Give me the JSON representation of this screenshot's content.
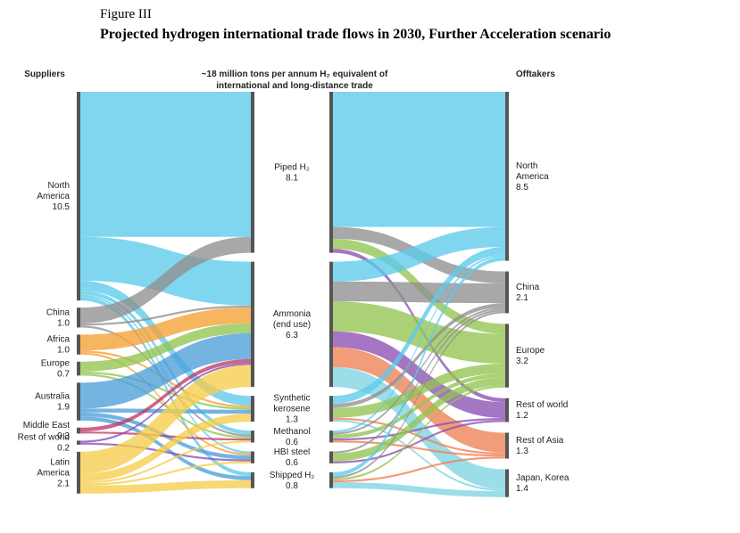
{
  "figure": {
    "label": "Figure III",
    "title": "Projected hydrogen international trade flows in 2030, Further Acceleration scenario"
  },
  "headers": {
    "suppliers": "Suppliers",
    "center_line1": "~18 million tons per annum H₂ equivalent of",
    "center_line2": "international and long-distance trade",
    "offtakers": "Offtakers"
  },
  "colors": {
    "North America": "#5ccbea",
    "China": "#8f8f8f",
    "Africa": "#f5a033",
    "Europe": "#92c450",
    "Australia": "#4c9fd8",
    "Middle East": "#c03a6a",
    "Rest of world": "#8a4fb3",
    "Latin America": "#f6cd4b",
    "Rest of Asia": "#ee8055",
    "Japan, Korea": "#7fd3e3"
  },
  "chart_data": {
    "type": "sankey",
    "unit": "million tons per annum H₂ equivalent",
    "suppliers": [
      {
        "name": "North America",
        "lines": [
          "North",
          "America",
          "10.5"
        ],
        "value": 10.5
      },
      {
        "name": "China",
        "lines": [
          "China",
          "1.0"
        ],
        "value": 1.0
      },
      {
        "name": "Africa",
        "lines": [
          "Africa",
          "1.0"
        ],
        "value": 1.0
      },
      {
        "name": "Europe",
        "lines": [
          "Europe",
          "0.7"
        ],
        "value": 0.7
      },
      {
        "name": "Australia",
        "lines": [
          "Australia",
          "1.9"
        ],
        "value": 1.9
      },
      {
        "name": "Middle East",
        "lines": [
          "Middle East",
          "0.3"
        ],
        "value": 0.3
      },
      {
        "name": "Rest of world",
        "lines": [
          "Rest of world",
          "0.2"
        ],
        "value": 0.2
      },
      {
        "name": "Latin America",
        "lines": [
          "Latin",
          "America",
          "2.1"
        ],
        "value": 2.1
      }
    ],
    "carriers": [
      {
        "name": "Piped H2",
        "lines": [
          "Piped H₂",
          "8.1"
        ],
        "value": 8.1
      },
      {
        "name": "Ammonia (end use)",
        "lines": [
          "Ammonia",
          "(end use)",
          "6.3"
        ],
        "value": 6.3
      },
      {
        "name": "Synthetic kerosene",
        "lines": [
          "Synthetic",
          "kerosene",
          "1.3"
        ],
        "value": 1.3
      },
      {
        "name": "Methanol",
        "lines": [
          "Methanol",
          "0.6"
        ],
        "value": 0.6
      },
      {
        "name": "HBI steel",
        "lines": [
          "HBI steel",
          "0.6"
        ],
        "value": 0.6
      },
      {
        "name": "Shipped H2",
        "lines": [
          "Shipped H₂",
          "0.8"
        ],
        "value": 0.8
      }
    ],
    "offtakers": [
      {
        "name": "North America",
        "lines": [
          "North",
          "America",
          "8.5"
        ],
        "value": 8.5
      },
      {
        "name": "China",
        "lines": [
          "China",
          "2.1"
        ],
        "value": 2.1
      },
      {
        "name": "Europe",
        "lines": [
          "Europe",
          "3.2"
        ],
        "value": 3.2
      },
      {
        "name": "Rest of world",
        "lines": [
          "Rest of world",
          "1.2"
        ],
        "value": 1.2
      },
      {
        "name": "Rest of Asia",
        "lines": [
          "Rest of Asia",
          "1.3"
        ],
        "value": 1.3
      },
      {
        "name": "Japan, Korea",
        "lines": [
          "Japan, Korea",
          "1.4"
        ],
        "value": 1.4
      }
    ],
    "flows_supplier_to_carrier": [
      {
        "from": "North America",
        "to": "Piped H2",
        "value": 7.3
      },
      {
        "from": "North America",
        "to": "Ammonia (end use)",
        "value": 2.2
      },
      {
        "from": "North America",
        "to": "Synthetic kerosene",
        "value": 0.5
      },
      {
        "from": "North America",
        "to": "Methanol",
        "value": 0.2
      },
      {
        "from": "North America",
        "to": "HBI steel",
        "value": 0.1
      },
      {
        "from": "North America",
        "to": "Shipped H2",
        "value": 0.2
      },
      {
        "from": "China",
        "to": "Piped H2",
        "value": 0.8
      },
      {
        "from": "China",
        "to": "Ammonia (end use)",
        "value": 0.1
      },
      {
        "from": "China",
        "to": "Methanol",
        "value": 0.1
      },
      {
        "from": "Africa",
        "to": "Ammonia (end use)",
        "value": 0.8
      },
      {
        "from": "Africa",
        "to": "Synthetic kerosene",
        "value": 0.1
      },
      {
        "from": "Africa",
        "to": "HBI steel",
        "value": 0.1
      },
      {
        "from": "Europe",
        "to": "Ammonia (end use)",
        "value": 0.5
      },
      {
        "from": "Europe",
        "to": "Synthetic kerosene",
        "value": 0.1
      },
      {
        "from": "Europe",
        "to": "Methanol",
        "value": 0.1
      },
      {
        "from": "Australia",
        "to": "Ammonia (end use)",
        "value": 1.3
      },
      {
        "from": "Australia",
        "to": "Synthetic kerosene",
        "value": 0.2
      },
      {
        "from": "Australia",
        "to": "HBI steel",
        "value": 0.2
      },
      {
        "from": "Australia",
        "to": "Shipped H2",
        "value": 0.2
      },
      {
        "from": "Middle East",
        "to": "Ammonia (end use)",
        "value": 0.2
      },
      {
        "from": "Middle East",
        "to": "Methanol",
        "value": 0.1
      },
      {
        "from": "Rest of world",
        "to": "Ammonia (end use)",
        "value": 0.1
      },
      {
        "from": "Rest of world",
        "to": "HBI steel",
        "value": 0.1
      },
      {
        "from": "Latin America",
        "to": "Ammonia (end use)",
        "value": 1.1
      },
      {
        "from": "Latin America",
        "to": "Synthetic kerosene",
        "value": 0.4
      },
      {
        "from": "Latin America",
        "to": "Methanol",
        "value": 0.1
      },
      {
        "from": "Latin America",
        "to": "HBI steel",
        "value": 0.1
      },
      {
        "from": "Latin America",
        "to": "Shipped H2",
        "value": 0.4
      }
    ],
    "flows_carrier_to_offtaker": [
      {
        "from": "Piped H2",
        "to": "North America",
        "value": 6.8
      },
      {
        "from": "Piped H2",
        "to": "China",
        "value": 0.6
      },
      {
        "from": "Piped H2",
        "to": "Europe",
        "value": 0.5
      },
      {
        "from": "Piped H2",
        "to": "Rest of world",
        "value": 0.2
      },
      {
        "from": "Ammonia (end use)",
        "to": "North America",
        "value": 1.0
      },
      {
        "from": "Ammonia (end use)",
        "to": "China",
        "value": 1.0
      },
      {
        "from": "Ammonia (end use)",
        "to": "Europe",
        "value": 1.5
      },
      {
        "from": "Ammonia (end use)",
        "to": "Rest of world",
        "value": 0.8
      },
      {
        "from": "Ammonia (end use)",
        "to": "Rest of Asia",
        "value": 1.0
      },
      {
        "from": "Ammonia (end use)",
        "to": "Japan, Korea",
        "value": 1.0
      },
      {
        "from": "Synthetic kerosene",
        "to": "North America",
        "value": 0.4
      },
      {
        "from": "Synthetic kerosene",
        "to": "China",
        "value": 0.2
      },
      {
        "from": "Synthetic kerosene",
        "to": "Europe",
        "value": 0.5
      },
      {
        "from": "Synthetic kerosene",
        "to": "Rest of Asia",
        "value": 0.1
      },
      {
        "from": "Synthetic kerosene",
        "to": "Japan, Korea",
        "value": 0.1
      },
      {
        "from": "Methanol",
        "to": "North America",
        "value": 0.1
      },
      {
        "from": "Methanol",
        "to": "China",
        "value": 0.1
      },
      {
        "from": "Methanol",
        "to": "Europe",
        "value": 0.2
      },
      {
        "from": "Methanol",
        "to": "Rest of world",
        "value": 0.1
      },
      {
        "from": "Methanol",
        "to": "Rest of Asia",
        "value": 0.1
      },
      {
        "from": "HBI steel",
        "to": "China",
        "value": 0.1
      },
      {
        "from": "HBI steel",
        "to": "Europe",
        "value": 0.4
      },
      {
        "from": "HBI steel",
        "to": "Rest of world",
        "value": 0.1
      },
      {
        "from": "Shipped H2",
        "to": "North America",
        "value": 0.2
      },
      {
        "from": "Shipped H2",
        "to": "China",
        "value": 0.1
      },
      {
        "from": "Shipped H2",
        "to": "Europe",
        "value": 0.1
      },
      {
        "from": "Shipped H2",
        "to": "Rest of Asia",
        "value": 0.1
      },
      {
        "from": "Shipped H2",
        "to": "Japan, Korea",
        "value": 0.3
      }
    ]
  }
}
